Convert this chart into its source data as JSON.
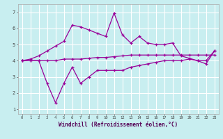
{
  "xlabel": "Windchill (Refroidissement éolien,°C)",
  "background_color": "#c8eef0",
  "line_color": "#990099",
  "grid_color": "#ffffff",
  "x": [
    0,
    1,
    2,
    3,
    4,
    5,
    6,
    7,
    8,
    9,
    10,
    11,
    12,
    13,
    14,
    15,
    16,
    17,
    18,
    19,
    20,
    21,
    22,
    23
  ],
  "line1": [
    4.0,
    4.0,
    4.0,
    2.6,
    1.4,
    2.6,
    3.6,
    2.6,
    3.0,
    3.4,
    3.4,
    3.4,
    3.4,
    3.6,
    3.7,
    3.8,
    3.9,
    4.0,
    4.0,
    4.0,
    4.1,
    4.0,
    3.8,
    4.6
  ],
  "line2": [
    4.0,
    4.0,
    4.0,
    4.0,
    4.0,
    4.1,
    4.1,
    4.1,
    4.15,
    4.2,
    4.2,
    4.25,
    4.3,
    4.35,
    4.35,
    4.35,
    4.35,
    4.35,
    4.35,
    4.35,
    4.35,
    4.35,
    4.35,
    4.35
  ],
  "line3": [
    4.0,
    4.1,
    4.3,
    4.6,
    4.9,
    5.2,
    6.2,
    6.1,
    5.9,
    5.7,
    5.5,
    6.95,
    5.6,
    5.1,
    5.5,
    5.1,
    5.0,
    5.0,
    5.1,
    4.3,
    4.15,
    4.0,
    4.0,
    4.6
  ],
  "ylim": [
    0.7,
    7.5
  ],
  "xlim": [
    -0.5,
    23.5
  ],
  "yticks": [
    1,
    2,
    3,
    4,
    5,
    6,
    7
  ],
  "xticks": [
    0,
    1,
    2,
    3,
    4,
    5,
    6,
    7,
    8,
    9,
    10,
    11,
    12,
    13,
    14,
    15,
    16,
    17,
    18,
    19,
    20,
    21,
    22,
    23
  ]
}
